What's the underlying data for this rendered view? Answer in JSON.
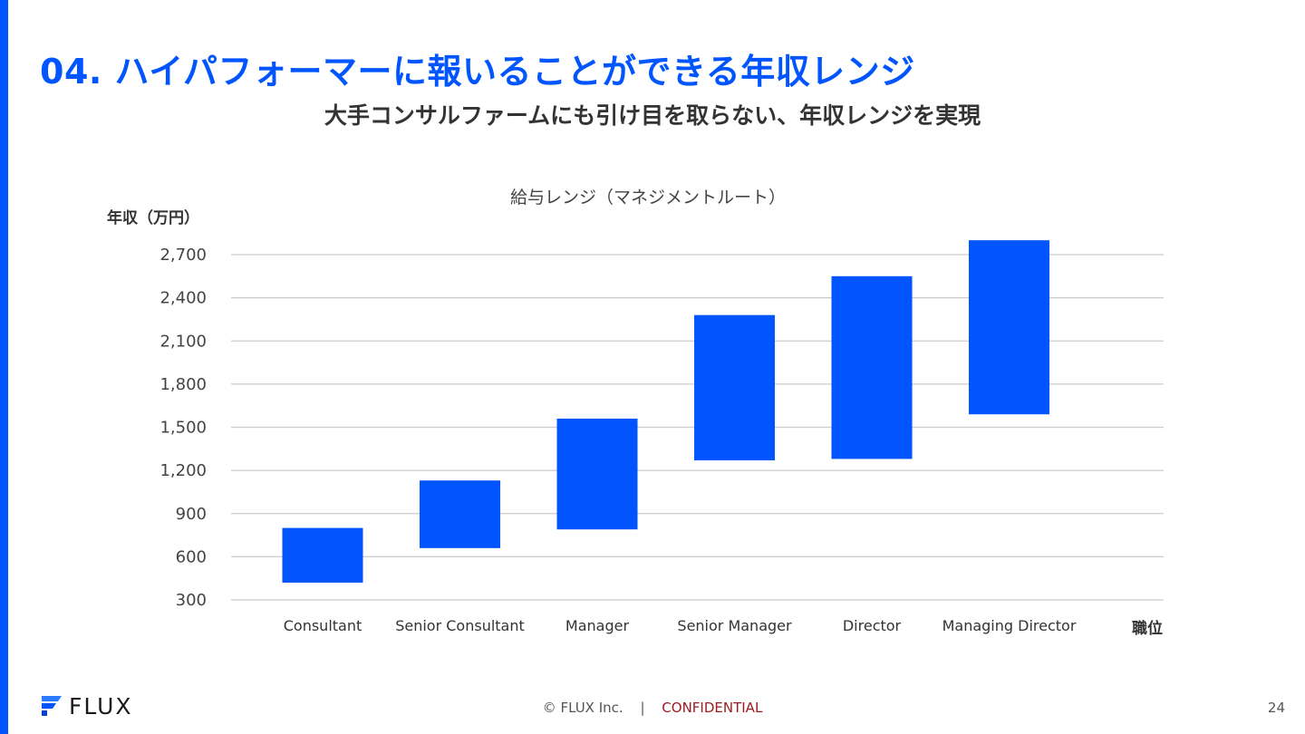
{
  "slide": {
    "title": "04. ハイパフォーマーに報いることができる年収レンジ",
    "subtitle": "大手コンサルファームにも引け目を取らない、年収レンジを実現"
  },
  "chart_data": {
    "type": "bar",
    "style": "floating-range",
    "title": "給与レンジ（マネジメントルート）",
    "ylabel": "年収（万円）",
    "xlabel": "職位",
    "categories": [
      "Consultant",
      "Senior Consultant",
      "Manager",
      "Senior Manager",
      "Director",
      "Managing Director"
    ],
    "series": [
      {
        "ranges": [
          [
            420,
            800
          ],
          [
            660,
            1130
          ],
          [
            790,
            1560
          ],
          [
            1270,
            2280
          ],
          [
            1280,
            2550
          ],
          [
            1590,
            2800
          ]
        ]
      }
    ],
    "ylim": [
      300,
      2700
    ],
    "yticks": [
      300,
      600,
      900,
      1200,
      1500,
      1800,
      2100,
      2400,
      2700
    ],
    "ytick_labels": [
      "300",
      "600",
      "900",
      "1,200",
      "1,500",
      "1,800",
      "2,100",
      "2,400",
      "2,700"
    ],
    "grid": true,
    "bar_color": "#0055ff"
  },
  "footer": {
    "logo_text": "FLUX",
    "copyright": "© FLUX Inc.",
    "separator": "|",
    "confidential": "CONFIDENTIAL",
    "page_number": "24"
  },
  "colors": {
    "accent": "#0055ff",
    "confidential": "#9e1b22"
  },
  "icons": {
    "logo": "flux-logo-icon"
  }
}
